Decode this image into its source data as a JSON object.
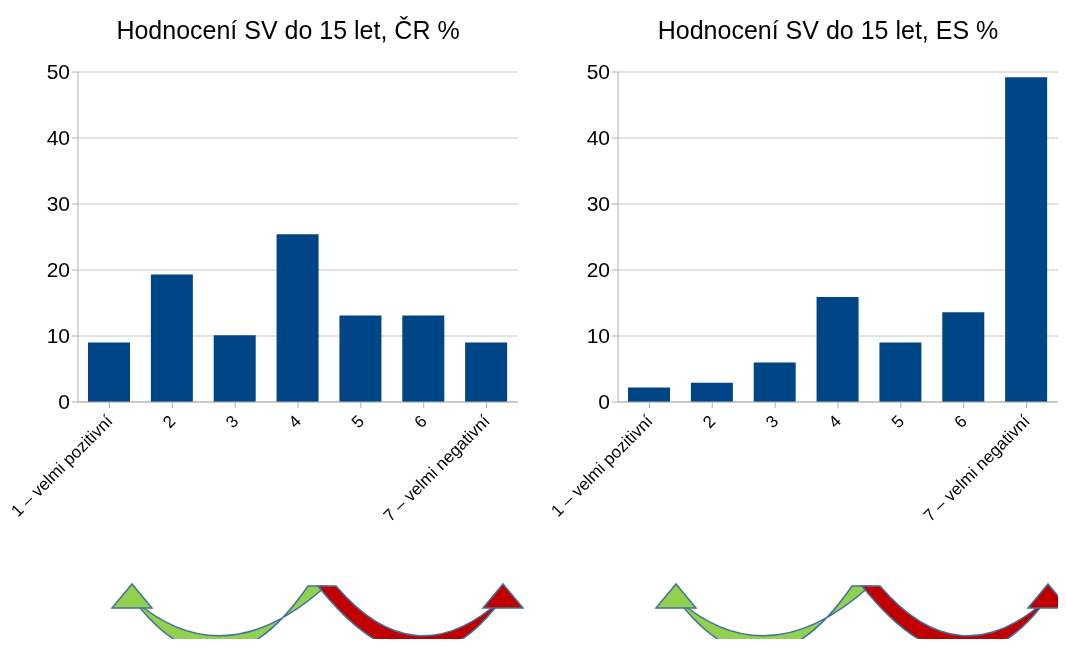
{
  "chart_data": [
    {
      "type": "bar",
      "title": "Hodnocení SV do 15 let, ČR %",
      "categories": [
        "1 – velmi pozitivní",
        "2",
        "3",
        "4",
        "5",
        "6",
        "7 – velmi negativní"
      ],
      "values": [
        9.0,
        19.3,
        10.1,
        25.4,
        13.1,
        13.1,
        9.0
      ],
      "color": "#004586",
      "ylim": [
        0,
        50
      ],
      "yticks": [
        0,
        10,
        20,
        30,
        40,
        50
      ],
      "grid": "y"
    },
    {
      "type": "bar",
      "title": "Hodnocení SV do 15 let, ES %",
      "categories": [
        "1 – velmi pozitivní",
        "2",
        "3",
        "4",
        "5",
        "6",
        "7 – velmi negativní"
      ],
      "values": [
        2.2,
        2.9,
        6.0,
        15.9,
        9.0,
        13.6,
        49.2
      ],
      "color": "#004586",
      "ylim": [
        0,
        50
      ],
      "yticks": [
        0,
        10,
        20,
        30,
        40,
        50
      ],
      "grid": "y"
    }
  ]
}
